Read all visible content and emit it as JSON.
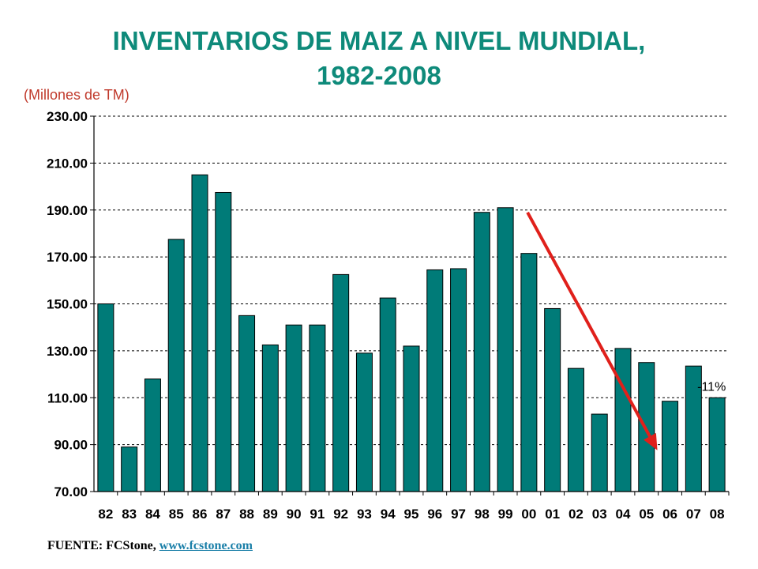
{
  "title_line1": "INVENTARIOS  DE MAIZ A NIVEL MUNDIAL,",
  "title_line2": "1982-2008",
  "unit_label": "(Millones de TM)",
  "source": {
    "prefix": "FUENTE: FCStone, ",
    "link": "www.fcstone.com"
  },
  "colors": {
    "bar": "#007b78",
    "title": "#0e8a7a",
    "arrow": "#e0201b"
  },
  "chart_data": {
    "type": "bar",
    "categories": [
      "82",
      "83",
      "84",
      "85",
      "86",
      "87",
      "88",
      "89",
      "90",
      "91",
      "92",
      "93",
      "94",
      "95",
      "96",
      "97",
      "98",
      "99",
      "00",
      "01",
      "02",
      "03",
      "04",
      "05",
      "06",
      "07",
      "08"
    ],
    "values": [
      150,
      89,
      118,
      177.5,
      205,
      197.5,
      145,
      132.5,
      141,
      141,
      162.5,
      129,
      152.5,
      132,
      164.5,
      165,
      189,
      191,
      171.5,
      148,
      122.5,
      103,
      131,
      125,
      108.5,
      123.5,
      110
    ],
    "yticks": [
      "230.00",
      "210.00",
      "190.00",
      "170.00",
      "150.00",
      "130.00",
      "110.00",
      "90.00",
      "70.00"
    ],
    "ylim": [
      70,
      230
    ],
    "grid": true,
    "annotation": {
      "text": "-11%",
      "from_category": "99",
      "to_category": "06"
    }
  }
}
